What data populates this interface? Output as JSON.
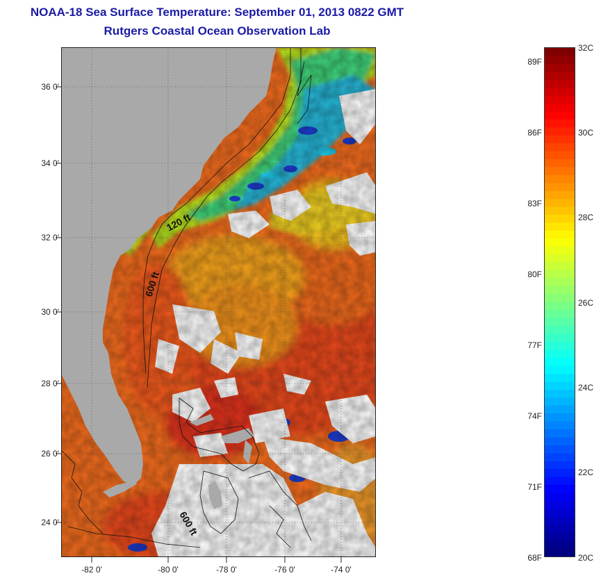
{
  "title": {
    "line1": "NOAA-18 Sea Surface Temperature:  September 01, 2013 0822 GMT",
    "line2": "Rutgers Coastal Ocean Observation Lab"
  },
  "map": {
    "lat_labels": [
      "36 0'",
      "34 0'",
      "32 0'",
      "30 0'",
      "28 0'",
      "26 0'",
      "24 0'"
    ],
    "lon_labels": [
      "-82 0'",
      "-80 0'",
      "-78 0'",
      "-76 0'",
      "-74 0'"
    ],
    "contour_labels": [
      "120 ft",
      "600 ft",
      "600 ft"
    ],
    "colors": {
      "land": "#a9a9a9",
      "cloud": "#ffffff"
    }
  },
  "colorbar": {
    "fahrenheit_labels": [
      "89F",
      "86F",
      "83F",
      "80F",
      "77F",
      "74F",
      "71F",
      "68F"
    ],
    "celsius_labels": [
      "32C",
      "30C",
      "28C",
      "26C",
      "24C",
      "22C",
      "20C"
    ],
    "range_c": [
      20,
      32
    ],
    "colormap": "jet"
  }
}
